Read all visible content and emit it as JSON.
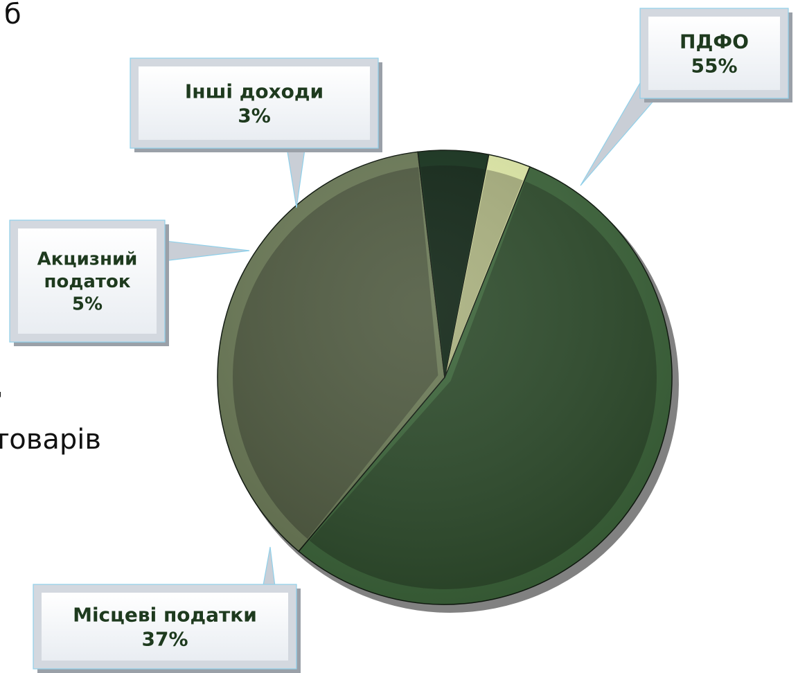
{
  "page_fragments": {
    "top_left": "б",
    "middle_left": "товарів",
    "tick_left": "'"
  },
  "chart_data": {
    "type": "pie",
    "title": "",
    "legend": "callouts",
    "slices": [
      {
        "label": "ПДФО",
        "value": 55,
        "display": "55%",
        "color": "#2c4a2a"
      },
      {
        "label": "Місцеві податки",
        "value": 37,
        "display": "37%",
        "color": "#4f5a40"
      },
      {
        "label": "Акцизний податок",
        "value": 5,
        "display": "5%",
        "color": "#0f2414"
      },
      {
        "label": "Інші доходи",
        "value": 3,
        "display": "3%",
        "color": "#a9b07e"
      }
    ]
  }
}
